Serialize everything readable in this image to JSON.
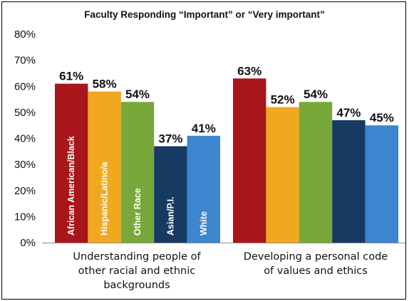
{
  "chart_data": {
    "type": "bar",
    "title": "Faculty Responding “Important” or “Very important”",
    "xlabel": "",
    "ylabel": "",
    "ylim": [
      0,
      80
    ],
    "yticks": [
      "0%",
      "10%",
      "20%",
      "30%",
      "40%",
      "50%",
      "60%",
      "70%",
      "80%"
    ],
    "grid": false,
    "categories": [
      [
        "Understanding people of",
        "other racial and ethnic",
        "backgrounds"
      ],
      [
        "Developing a personal code",
        "of values and ethics"
      ]
    ],
    "series": [
      {
        "name": "African American/Black",
        "color": "#a8151a",
        "values": [
          61,
          63
        ],
        "labels": [
          "61%",
          "63%"
        ]
      },
      {
        "name": "Hispanic/Latino/a",
        "color": "#f0a81e",
        "values": [
          58,
          52
        ],
        "labels": [
          "58%",
          "52%"
        ]
      },
      {
        "name": "Other  Race",
        "color": "#78a83a",
        "values": [
          54,
          54
        ],
        "labels": [
          "54%",
          "54%"
        ]
      },
      {
        "name": "Asian/P.I.",
        "color": "#173a62",
        "values": [
          37,
          47
        ],
        "labels": [
          "37%",
          "47%"
        ]
      },
      {
        "name": "White",
        "color": "#3b86cf",
        "values": [
          41,
          45
        ],
        "labels": [
          "41%",
          "45%"
        ]
      }
    ]
  }
}
